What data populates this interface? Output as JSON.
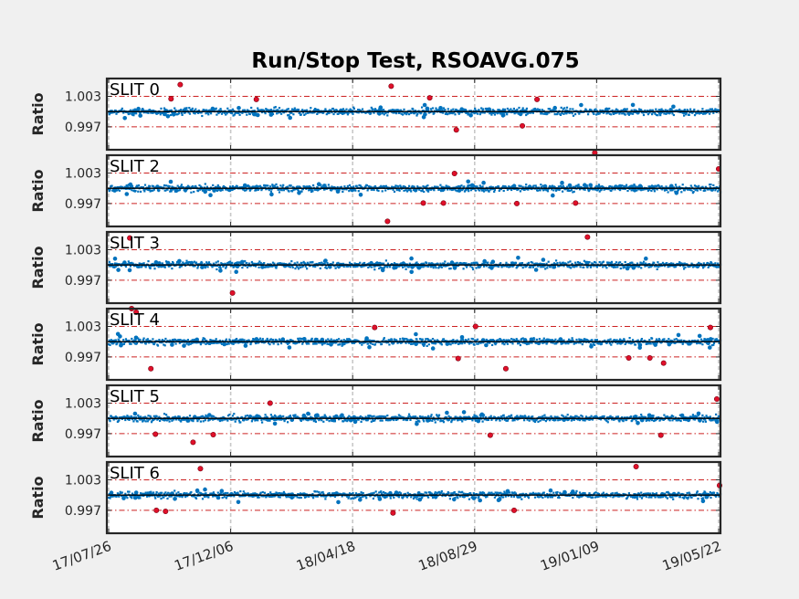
{
  "figure": {
    "title": "Run/Stop Test, RSOAVG.075",
    "background": "#f0f0f0"
  },
  "chart_data": {
    "type": "scatter",
    "title": "Run/Stop Test, RSOAVG.075",
    "xlabel": "",
    "ylabel": "Ratio",
    "x_type": "date",
    "xlim": [
      "2017-07-24",
      "2019-05-24"
    ],
    "ylim": [
      0.9925,
      1.0065
    ],
    "x_ticks": [
      "17/07/26",
      "17/12/06",
      "18/04/18",
      "18/08/29",
      "19/01/09",
      "19/05/22"
    ],
    "x_tick_dates": [
      "2017-07-26",
      "2017-12-06",
      "2018-04-18",
      "2018-08-29",
      "2019-01-09",
      "2019-05-22"
    ],
    "y_ticks": [
      "1.003",
      "0.997"
    ],
    "y_tick_values": [
      1.003,
      0.997
    ],
    "grid": "vertical dashed lines at x ticks",
    "reference_lines": {
      "values": [
        1.003,
        0.997
      ],
      "style": "dash-dot",
      "color": "#cc2222"
    },
    "colors": {
      "normal_points": "#0072bd",
      "outliers": "#e0102a",
      "mean_line": "#000000",
      "panel_border": "#262626"
    },
    "band": {
      "center": 1.0,
      "halfwidth": 0.001
    },
    "panels": [
      {
        "label": "SLIT 0",
        "outliers": [
          {
            "x": "2017-10-12",
            "y": 1.0053
          },
          {
            "x": "2017-10-02",
            "y": 1.0025
          },
          {
            "x": "2018-01-03",
            "y": 1.0024
          },
          {
            "x": "2018-05-30",
            "y": 1.005
          },
          {
            "x": "2018-07-11",
            "y": 1.0027
          },
          {
            "x": "2018-08-09",
            "y": 0.9964
          },
          {
            "x": "2018-10-20",
            "y": 0.9972
          },
          {
            "x": "2018-11-05",
            "y": 1.0024
          },
          {
            "x": "2019-01-07",
            "y": 0.9919
          }
        ]
      },
      {
        "label": "SLIT 2",
        "outliers": [
          {
            "x": "2018-05-26",
            "y": 0.9935
          },
          {
            "x": "2018-07-04",
            "y": 0.9971
          },
          {
            "x": "2018-07-26",
            "y": 0.9971
          },
          {
            "x": "2018-08-07",
            "y": 1.0029
          },
          {
            "x": "2018-10-14",
            "y": 0.997
          },
          {
            "x": "2018-12-17",
            "y": 0.9971
          },
          {
            "x": "2019-05-22",
            "y": 1.0038
          }
        ]
      },
      {
        "label": "SLIT 3",
        "outliers": [
          {
            "x": "2017-08-18",
            "y": 1.0053
          },
          {
            "x": "2017-12-08",
            "y": 0.9945
          },
          {
            "x": "2018-12-30",
            "y": 1.0055
          }
        ]
      },
      {
        "label": "SLIT 4",
        "outliers": [
          {
            "x": "2017-08-20",
            "y": 1.0065
          },
          {
            "x": "2017-08-25",
            "y": 1.0058
          },
          {
            "x": "2017-09-10",
            "y": 0.9947
          },
          {
            "x": "2018-05-12",
            "y": 1.0028
          },
          {
            "x": "2018-08-11",
            "y": 0.9967
          },
          {
            "x": "2018-08-30",
            "y": 1.003
          },
          {
            "x": "2018-10-02",
            "y": 0.9947
          },
          {
            "x": "2019-02-13",
            "y": 0.9968
          },
          {
            "x": "2019-03-08",
            "y": 0.9968
          },
          {
            "x": "2019-03-23",
            "y": 0.9958
          },
          {
            "x": "2019-05-13",
            "y": 1.0028
          }
        ]
      },
      {
        "label": "SLIT 5",
        "outliers": [
          {
            "x": "2017-09-15",
            "y": 0.9969
          },
          {
            "x": "2017-10-26",
            "y": 0.9953
          },
          {
            "x": "2017-11-17",
            "y": 0.9968
          },
          {
            "x": "2018-01-18",
            "y": 1.003
          },
          {
            "x": "2018-09-15",
            "y": 0.9967
          },
          {
            "x": "2019-03-20",
            "y": 0.9967
          },
          {
            "x": "2019-05-20",
            "y": 1.0038
          }
        ]
      },
      {
        "label": "SLIT 6",
        "outliers": [
          {
            "x": "2017-09-16",
            "y": 0.997
          },
          {
            "x": "2017-09-26",
            "y": 0.9968
          },
          {
            "x": "2017-11-03",
            "y": 1.0052
          },
          {
            "x": "2018-06-01",
            "y": 0.9965
          },
          {
            "x": "2018-10-11",
            "y": 0.997
          },
          {
            "x": "2019-02-21",
            "y": 1.0056
          },
          {
            "x": "2019-05-23",
            "y": 1.0019
          }
        ]
      }
    ]
  }
}
